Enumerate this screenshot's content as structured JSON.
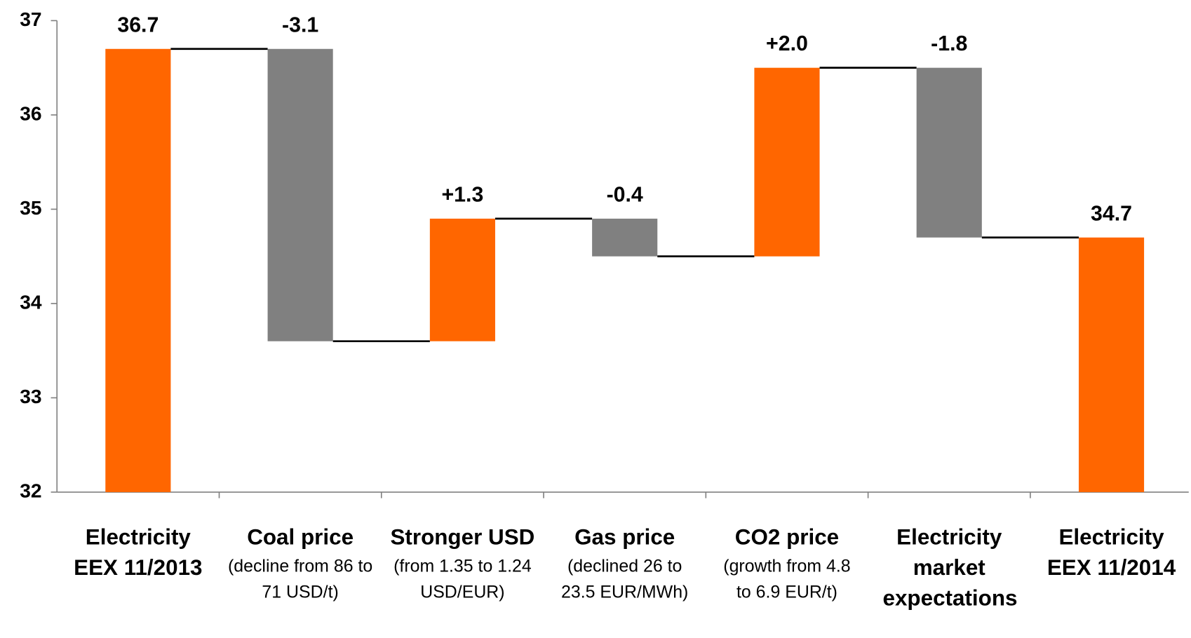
{
  "chart_data": {
    "type": "waterfall",
    "categories": [
      "Electricity EEX 11/2013",
      "Coal price",
      "Stronger USD",
      "Gas price",
      "CO2 price",
      "Electricity market expectations",
      "Electricity EEX 11/2014"
    ],
    "category_details": [
      null,
      "(decline from 86 to 71 USD/t)",
      "(from 1.35 to 1.24 USD/EUR)",
      "(declined 26 to 23.5 EUR/MWh)",
      "(growth from 4.8 to 6.9 EUR/t)",
      null,
      null
    ],
    "measures": [
      "total",
      "relative",
      "relative",
      "relative",
      "relative",
      "relative",
      "total"
    ],
    "values": [
      36.7,
      -3.1,
      1.3,
      -0.4,
      2.0,
      -1.8,
      34.7
    ],
    "value_labels": [
      "36.7",
      "-3.1",
      "+1.3",
      "-0.4",
      "+2.0",
      "-1.8",
      "34.7"
    ],
    "colors": {
      "total": "#ff6600",
      "increase": "#ff6600",
      "decrease": "#808080"
    },
    "ylim": [
      32,
      37
    ],
    "yticks": [
      32,
      33,
      34,
      35,
      36,
      37
    ]
  }
}
